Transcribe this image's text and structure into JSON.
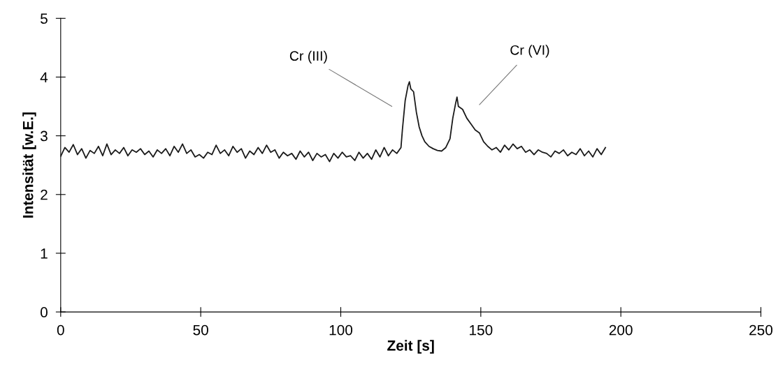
{
  "chart_data": {
    "type": "line",
    "xlabel": "Zeit [s]",
    "ylabel": "Intensität [w.E.]",
    "x": [
      0,
      1.5,
      3,
      4.5,
      6,
      7.5,
      9,
      10.5,
      12,
      13.5,
      15,
      16.5,
      18,
      19.5,
      21,
      22.5,
      24,
      25.5,
      27,
      28.5,
      30,
      31.5,
      33,
      34.5,
      36,
      37.5,
      39,
      40.5,
      42,
      43.5,
      45,
      46.5,
      48,
      49.5,
      51,
      52.5,
      54,
      55.5,
      57,
      58.5,
      60,
      61.5,
      63,
      64.5,
      66,
      67.5,
      69,
      70.5,
      72,
      73.5,
      75,
      76.5,
      78,
      79.5,
      81,
      82.5,
      84,
      85.5,
      87,
      88.5,
      90,
      91.5,
      93,
      94.5,
      96,
      97.5,
      99,
      100.5,
      102,
      103.5,
      105,
      106.5,
      108,
      109.5,
      111,
      112.5,
      114,
      115.5,
      117,
      118.5,
      120,
      121.5,
      122,
      123,
      124,
      124.5,
      125,
      126,
      127,
      128,
      129,
      130,
      131.5,
      133,
      134.5,
      136,
      137.5,
      139,
      140,
      141,
      141.5,
      142,
      143.5,
      145,
      146.5,
      148,
      149.5,
      151,
      152.5,
      154,
      155.5,
      157,
      158.5,
      160,
      161.5,
      163,
      164.5,
      166,
      167.5,
      169,
      170.5,
      172,
      173.5,
      175,
      176.5,
      178,
      179.5,
      181,
      182.5,
      184,
      185.5,
      187,
      188.5,
      190,
      191.5,
      193,
      194.5
    ],
    "series": [
      {
        "color": "#1a1a1a",
        "values": [
          2.65,
          2.8,
          2.72,
          2.85,
          2.68,
          2.78,
          2.62,
          2.75,
          2.7,
          2.82,
          2.66,
          2.86,
          2.68,
          2.76,
          2.7,
          2.8,
          2.66,
          2.76,
          2.72,
          2.78,
          2.68,
          2.74,
          2.64,
          2.76,
          2.7,
          2.78,
          2.66,
          2.82,
          2.72,
          2.86,
          2.7,
          2.76,
          2.64,
          2.68,
          2.62,
          2.72,
          2.68,
          2.84,
          2.7,
          2.76,
          2.66,
          2.82,
          2.72,
          2.78,
          2.62,
          2.74,
          2.68,
          2.8,
          2.7,
          2.84,
          2.72,
          2.76,
          2.62,
          2.72,
          2.66,
          2.7,
          2.6,
          2.74,
          2.64,
          2.72,
          2.58,
          2.7,
          2.64,
          2.68,
          2.56,
          2.7,
          2.62,
          2.72,
          2.64,
          2.66,
          2.58,
          2.72,
          2.62,
          2.7,
          2.6,
          2.76,
          2.64,
          2.8,
          2.66,
          2.76,
          2.7,
          2.8,
          3.1,
          3.6,
          3.85,
          3.92,
          3.8,
          3.75,
          3.4,
          3.15,
          3.0,
          2.9,
          2.82,
          2.78,
          2.75,
          2.74,
          2.8,
          2.95,
          3.3,
          3.55,
          3.66,
          3.5,
          3.45,
          3.3,
          3.2,
          3.1,
          3.05,
          2.9,
          2.82,
          2.76,
          2.8,
          2.72,
          2.84,
          2.76,
          2.86,
          2.78,
          2.82,
          2.72,
          2.76,
          2.68,
          2.76,
          2.72,
          2.7,
          2.64,
          2.74,
          2.7,
          2.76,
          2.66,
          2.72,
          2.68,
          2.78,
          2.66,
          2.74,
          2.64,
          2.78,
          2.68,
          2.8
        ]
      }
    ],
    "xlim": [
      0,
      250
    ],
    "xticks": [
      0,
      50,
      100,
      150,
      200,
      250
    ],
    "ylim": [
      0,
      5
    ],
    "yticks": [
      0,
      1,
      2,
      3,
      4,
      5
    ],
    "grid": false,
    "marker": "none",
    "line_style": "solid",
    "annotations": [
      "Cr (III)",
      "Cr (VI)"
    ]
  }
}
